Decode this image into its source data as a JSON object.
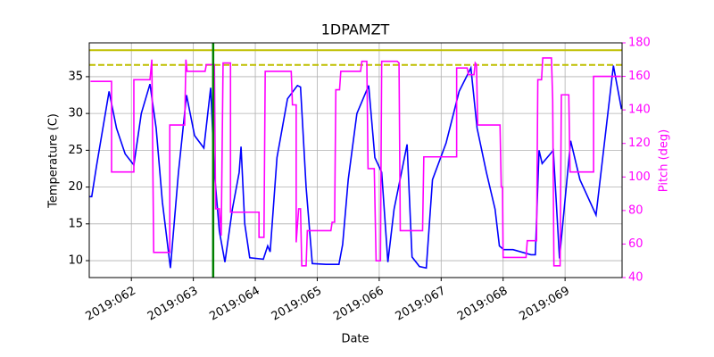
{
  "chart_data": {
    "type": "line",
    "title": "1DPAMZT",
    "xlabel": "Date",
    "ylabel": "Temperature (C)",
    "y2label": "Pitch (deg)",
    "xlim": [
      61.32,
      69.92
    ],
    "xticks": [
      {
        "value": 62,
        "label": "2019:062"
      },
      {
        "value": 63,
        "label": "2019:063"
      },
      {
        "value": 64,
        "label": "2019:064"
      },
      {
        "value": 65,
        "label": "2019:065"
      },
      {
        "value": 66,
        "label": "2019:066"
      },
      {
        "value": 67,
        "label": "2019:067"
      },
      {
        "value": 68,
        "label": "2019:068"
      },
      {
        "value": 69,
        "label": "2019:069"
      }
    ],
    "ylim": [
      7.7,
      39.6
    ],
    "yticks": [
      10,
      15,
      20,
      25,
      30,
      35
    ],
    "y2lim": [
      40,
      180
    ],
    "y2ticks": [
      40,
      60,
      80,
      100,
      120,
      140,
      160,
      180
    ],
    "grid": true,
    "y2color": "#ff00ff",
    "hlines": [
      {
        "value": 38.6,
        "color": "#bfbf00",
        "dash": false
      },
      {
        "value": 36.6,
        "color": "#bfbf00",
        "dash": true
      }
    ],
    "vlines": [
      {
        "value": 63.32,
        "color": "#008000"
      }
    ],
    "series": [
      {
        "name": "1DPAMZT",
        "color": "#0000ff",
        "axis": "y",
        "x": [
          61.32,
          61.36,
          61.44,
          61.54,
          61.64,
          61.76,
          61.9,
          62.04,
          62.16,
          62.3,
          62.4,
          62.5,
          62.63,
          62.76,
          62.89,
          63.02,
          63.17,
          63.28,
          63.34,
          63.42,
          63.51,
          63.63,
          63.74,
          63.77,
          63.83,
          63.91,
          64.13,
          64.2,
          64.24,
          64.35,
          64.52,
          64.68,
          64.73,
          64.82,
          64.92,
          65.14,
          65.35,
          65.41,
          65.5,
          65.64,
          65.83,
          65.93,
          66.04,
          66.14,
          66.24,
          66.36,
          66.45,
          66.53,
          66.65,
          66.76,
          66.86,
          67.08,
          67.29,
          67.48,
          67.58,
          67.73,
          67.87,
          67.94,
          68.01,
          68.16,
          68.45,
          68.52,
          68.58,
          68.63,
          68.81,
          68.91,
          69.09,
          69.24,
          69.5,
          69.78,
          69.91
        ],
        "values": [
          18.7,
          18.7,
          23,
          28,
          33,
          28,
          24.5,
          23,
          30,
          34,
          28,
          18,
          9,
          22,
          32.5,
          27,
          25.3,
          33.5,
          22,
          14,
          9.8,
          17,
          22,
          25.5,
          15,
          10.4,
          10.2,
          12,
          11.2,
          24,
          32,
          33.8,
          33.6,
          20,
          9.6,
          9.5,
          9.5,
          12.2,
          21,
          30,
          33.8,
          24,
          22,
          9.8,
          17,
          22,
          25.8,
          10.5,
          9.2,
          9.0,
          21,
          26,
          33,
          36.2,
          28,
          22,
          17,
          12,
          11.5,
          11.5,
          10.8,
          10.8,
          25,
          23.2,
          25,
          10.3,
          26.3,
          21,
          16.2,
          36.5,
          30.6
        ]
      },
      {
        "name": "Pitch",
        "color": "#ff00ff",
        "axis": "y2",
        "x": [
          61.34,
          61.68,
          61.68,
          62.04,
          62.04,
          62.3,
          62.33,
          62.36,
          62.62,
          62.62,
          62.86,
          62.88,
          62.9,
          63.19,
          63.21,
          63.34,
          63.36,
          63.42,
          63.45,
          63.48,
          63.6,
          63.6,
          63.96,
          64.06,
          64.06,
          64.14,
          64.16,
          64.58,
          64.6,
          64.66,
          64.66,
          64.7,
          64.73,
          64.75,
          64.82,
          64.84,
          65.22,
          65.24,
          65.28,
          65.3,
          65.36,
          65.38,
          65.7,
          65.72,
          65.8,
          65.82,
          65.92,
          65.95,
          66.02,
          66.04,
          66.29,
          66.32,
          66.34,
          66.7,
          66.72,
          67.25,
          67.25,
          67.42,
          67.44,
          67.53,
          67.55,
          67.57,
          67.59,
          67.95,
          67.97,
          67.99,
          68.0,
          68.37,
          68.39,
          68.54,
          68.56,
          68.62,
          68.64,
          68.78,
          68.8,
          68.82,
          68.92,
          68.94,
          69.06,
          69.08,
          69.46,
          69.46,
          69.8,
          69.9
        ],
        "values": [
          157,
          157,
          103,
          103,
          158,
          158,
          170,
          55,
          55,
          131,
          131,
          170,
          163,
          163,
          167,
          167,
          81,
          81,
          65,
          168,
          168,
          79,
          79,
          79,
          64,
          64,
          163,
          163,
          143,
          143,
          61,
          81,
          81,
          47,
          47,
          68,
          68,
          73,
          73,
          152,
          152,
          163,
          163,
          169,
          169,
          105,
          105,
          50,
          50,
          169,
          169,
          168,
          68,
          68,
          112,
          112,
          165,
          165,
          161,
          161,
          168,
          167,
          131,
          131,
          94,
          94,
          52,
          52,
          62,
          62,
          158,
          158,
          171,
          171,
          146,
          47,
          47,
          149,
          149,
          103,
          103,
          160,
          160,
          160
        ]
      }
    ]
  }
}
